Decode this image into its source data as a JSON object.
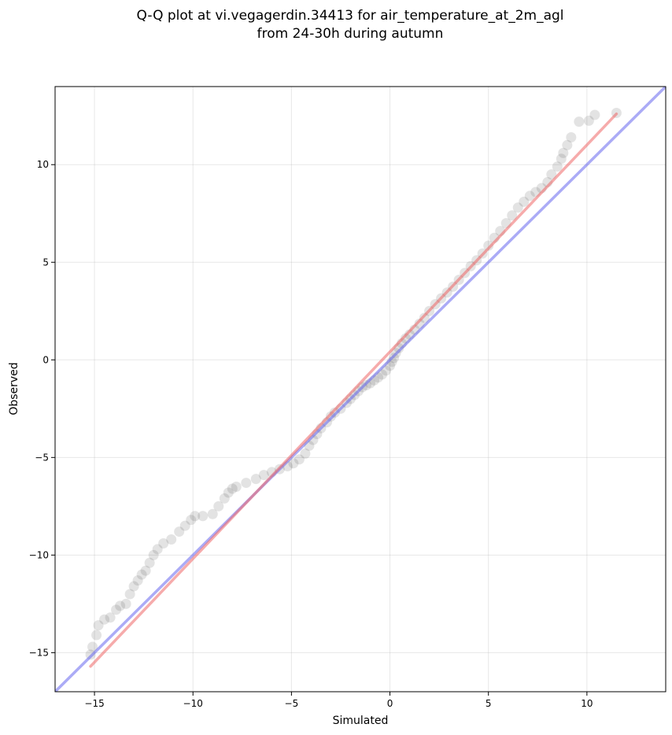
{
  "chart_data": {
    "type": "scatter",
    "title_lines": [
      "Q-Q plot at vi.vegagerdin.34413 for air_temperature_at_2m_agl",
      "from 24-30h during autumn"
    ],
    "xlabel": "Simulated",
    "ylabel": "Observed",
    "xlim": [
      -17.0,
      14.0
    ],
    "ylim": [
      -17.0,
      14.0
    ],
    "xticks": [
      -15,
      -10,
      -5,
      0,
      5,
      10
    ],
    "yticks": [
      -15,
      -10,
      -5,
      0,
      5,
      10
    ],
    "xtick_labels": [
      "−15",
      "−10",
      "−5",
      "0",
      "5",
      "10"
    ],
    "ytick_labels": [
      "−15",
      "−10",
      "−5",
      "0",
      "5",
      "10"
    ],
    "grid": true,
    "colors": {
      "points": "#404040",
      "identity_line": "#6666ee",
      "fit_line": "#ee6666"
    },
    "identity_line": {
      "from": [
        -17.0,
        -17.0
      ],
      "to": [
        14.0,
        14.0
      ]
    },
    "fit_line": {
      "from": [
        -15.2,
        -15.7
      ],
      "to": [
        11.5,
        12.6
      ]
    },
    "series": [
      {
        "points": [
          [
            -15.2,
            -15.1
          ],
          [
            -15.1,
            -14.7
          ],
          [
            -14.9,
            -14.1
          ],
          [
            -14.8,
            -13.6
          ],
          [
            -14.5,
            -13.3
          ],
          [
            -14.2,
            -13.2
          ],
          [
            -13.9,
            -12.8
          ],
          [
            -13.7,
            -12.6
          ],
          [
            -13.4,
            -12.5
          ],
          [
            -13.2,
            -12.0
          ],
          [
            -13.0,
            -11.6
          ],
          [
            -12.8,
            -11.3
          ],
          [
            -12.6,
            -11.0
          ],
          [
            -12.4,
            -10.8
          ],
          [
            -12.2,
            -10.4
          ],
          [
            -12.0,
            -10.0
          ],
          [
            -11.8,
            -9.7
          ],
          [
            -11.5,
            -9.4
          ],
          [
            -11.1,
            -9.2
          ],
          [
            -10.7,
            -8.8
          ],
          [
            -10.4,
            -8.5
          ],
          [
            -10.1,
            -8.2
          ],
          [
            -9.9,
            -8.0
          ],
          [
            -9.5,
            -8.0
          ],
          [
            -9.0,
            -7.9
          ],
          [
            -8.7,
            -7.5
          ],
          [
            -8.4,
            -7.1
          ],
          [
            -8.2,
            -6.8
          ],
          [
            -8.0,
            -6.6
          ],
          [
            -7.8,
            -6.5
          ],
          [
            -7.3,
            -6.3
          ],
          [
            -6.8,
            -6.1
          ],
          [
            -6.4,
            -5.9
          ],
          [
            -6.0,
            -5.75
          ],
          [
            -5.6,
            -5.6
          ],
          [
            -5.2,
            -5.45
          ],
          [
            -4.9,
            -5.3
          ],
          [
            -4.6,
            -5.1
          ],
          [
            -4.3,
            -4.8
          ],
          [
            -4.1,
            -4.4
          ],
          [
            -3.9,
            -4.1
          ],
          [
            -3.7,
            -3.8
          ],
          [
            -3.5,
            -3.5
          ],
          [
            -3.2,
            -3.2
          ],
          [
            -3.0,
            -2.9
          ],
          [
            -2.8,
            -2.7
          ],
          [
            -2.5,
            -2.5
          ],
          [
            -2.2,
            -2.2
          ],
          [
            -2.0,
            -2.0
          ],
          [
            -1.8,
            -1.8
          ],
          [
            -1.6,
            -1.6
          ],
          [
            -1.4,
            -1.4
          ],
          [
            -1.2,
            -1.3
          ],
          [
            -1.0,
            -1.2
          ],
          [
            -0.8,
            -1.05
          ],
          [
            -0.6,
            -0.9
          ],
          [
            -0.4,
            -0.75
          ],
          [
            -0.2,
            -0.55
          ],
          [
            0.0,
            -0.3
          ],
          [
            0.1,
            -0.1
          ],
          [
            0.2,
            0.1
          ],
          [
            0.3,
            0.35
          ],
          [
            0.45,
            0.6
          ],
          [
            0.6,
            0.85
          ],
          [
            0.8,
            1.1
          ],
          [
            1.0,
            1.3
          ],
          [
            1.25,
            1.55
          ],
          [
            1.5,
            1.85
          ],
          [
            1.75,
            2.15
          ],
          [
            2.0,
            2.5
          ],
          [
            2.3,
            2.85
          ],
          [
            2.6,
            3.15
          ],
          [
            2.9,
            3.45
          ],
          [
            3.2,
            3.75
          ],
          [
            3.5,
            4.1
          ],
          [
            3.8,
            4.45
          ],
          [
            4.1,
            4.8
          ],
          [
            4.4,
            5.1
          ],
          [
            4.7,
            5.45
          ],
          [
            5.0,
            5.85
          ],
          [
            5.3,
            6.25
          ],
          [
            5.6,
            6.6
          ],
          [
            5.9,
            7.0
          ],
          [
            6.2,
            7.4
          ],
          [
            6.5,
            7.8
          ],
          [
            6.8,
            8.1
          ],
          [
            7.1,
            8.4
          ],
          [
            7.4,
            8.6
          ],
          [
            7.7,
            8.8
          ],
          [
            8.0,
            9.1
          ],
          [
            8.2,
            9.5
          ],
          [
            8.5,
            9.9
          ],
          [
            8.7,
            10.3
          ],
          [
            8.8,
            10.6
          ],
          [
            9.0,
            11.0
          ],
          [
            9.2,
            11.4
          ],
          [
            9.6,
            12.2
          ],
          [
            10.1,
            12.25
          ],
          [
            10.4,
            12.55
          ],
          [
            11.5,
            12.65
          ]
        ]
      }
    ]
  }
}
